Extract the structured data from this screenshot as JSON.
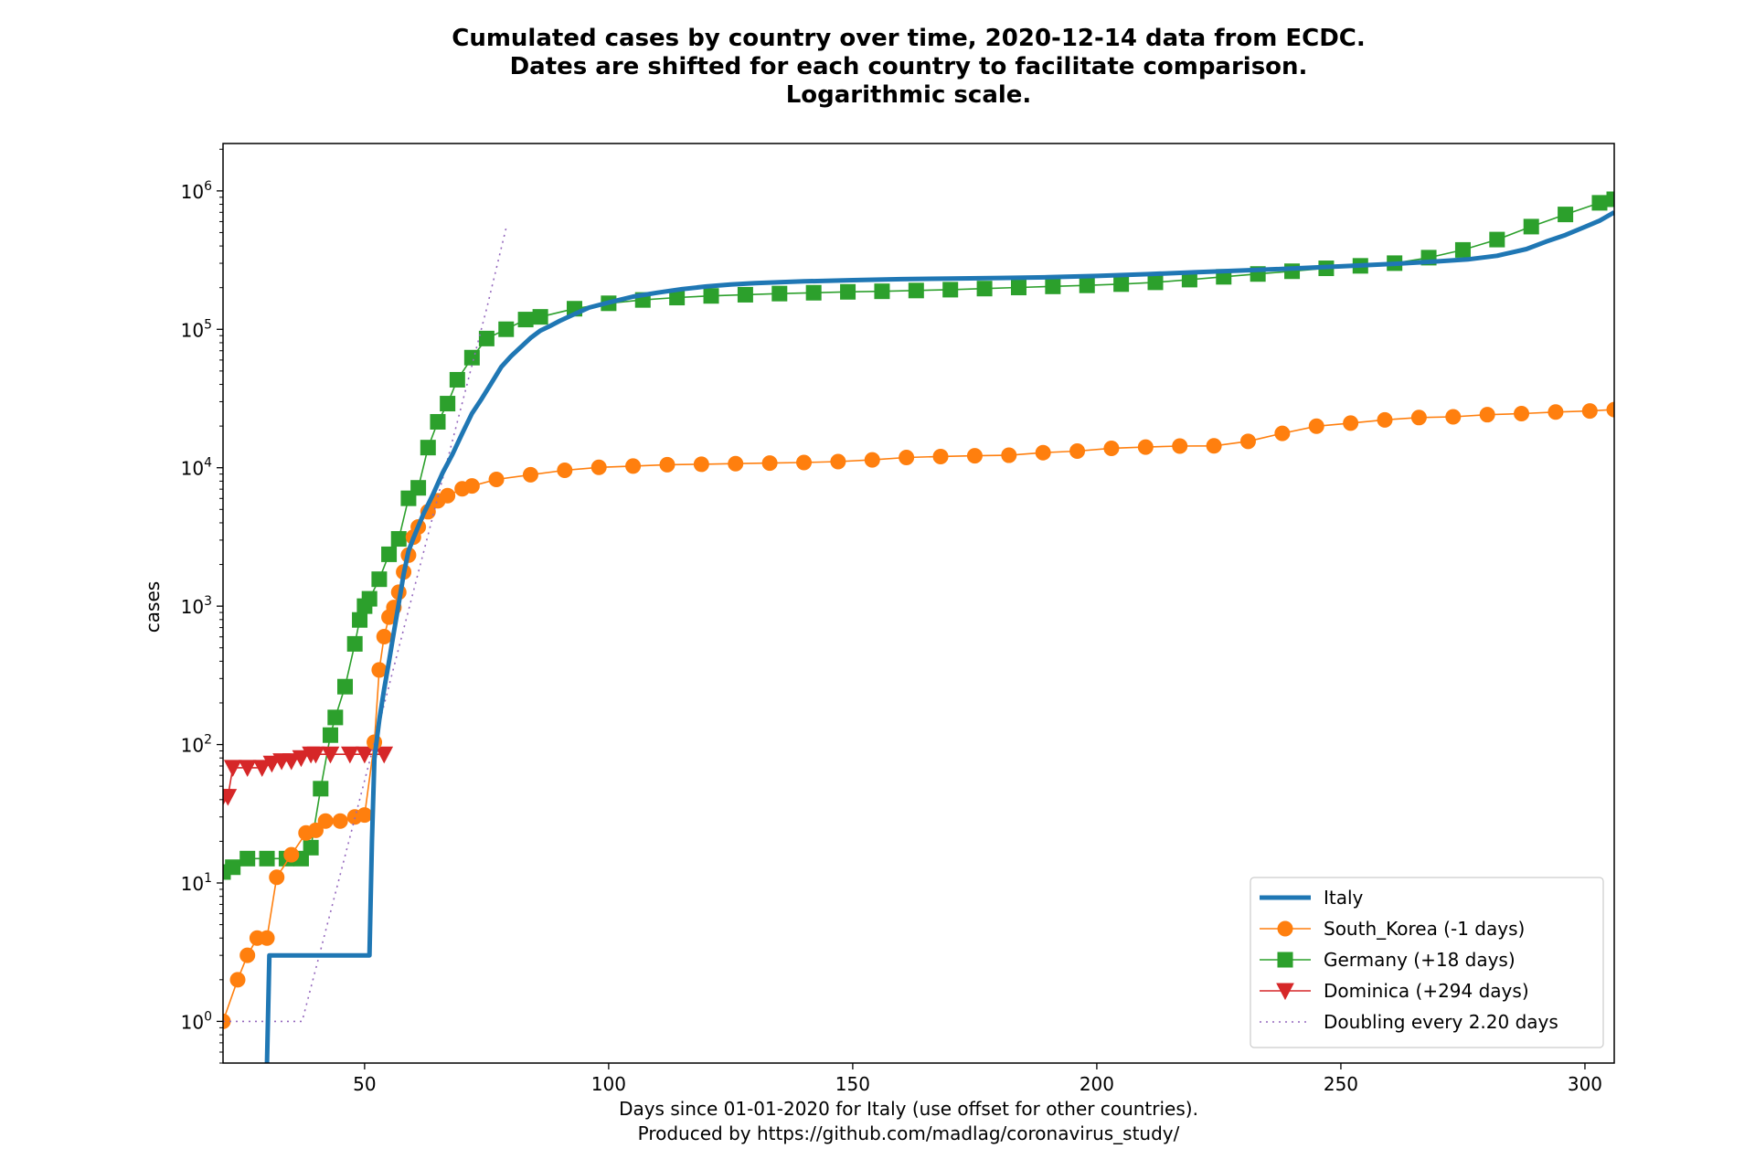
{
  "chart_data": {
    "type": "line",
    "title": [
      "Cumulated cases by country over time, 2020-12-14 data from ECDC.",
      "Dates are shifted for each country to facilitate comparison.",
      "Logarithmic scale."
    ],
    "xlabel": [
      "Days since 01-01-2020 for Italy (use offset for other countries).",
      "Produced by https://github.com/madlag/coronavirus_study/"
    ],
    "ylabel": "cases",
    "xlim": [
      21,
      306
    ],
    "ylim": [
      0.5,
      2200000
    ],
    "yscale": "log",
    "x_ticks": [
      50,
      100,
      150,
      200,
      250,
      300
    ],
    "x_tick_labels": [
      "50",
      "100",
      "150",
      "200",
      "250",
      "300"
    ],
    "y_ticks": [
      1,
      10,
      100,
      1000,
      10000,
      100000,
      1000000
    ],
    "y_tick_bases": [
      "10",
      "10",
      "10",
      "10",
      "10",
      "10",
      "10"
    ],
    "y_tick_exponents": [
      "0",
      "1",
      "2",
      "3",
      "4",
      "5",
      "6"
    ],
    "grid": false,
    "legend_position": "lower-right",
    "series": [
      {
        "name": "Italy",
        "color": "#1f77b4",
        "line_width": "thick",
        "marker": "none",
        "line_style": "solid",
        "x": [
          30,
          30,
          30.5,
          51,
          51.5,
          52,
          53,
          54,
          55,
          56,
          57,
          58,
          59,
          60,
          62,
          64,
          66,
          68,
          70,
          72,
          74,
          76,
          78,
          80,
          82,
          84,
          86,
          88,
          90,
          93,
          96,
          100,
          105,
          110,
          115,
          120,
          125,
          130,
          140,
          150,
          160,
          170,
          180,
          190,
          200,
          210,
          220,
          230,
          240,
          250,
          260,
          270,
          276,
          282,
          288,
          292,
          296,
          300,
          303,
          306
        ],
        "y": [
          0.5,
          0.5,
          3,
          3,
          20,
          79,
          150,
          250,
          400,
          650,
          1050,
          1700,
          2500,
          3100,
          4600,
          6400,
          9200,
          12500,
          17700,
          24700,
          31500,
          41000,
          53500,
          63900,
          74400,
          86500,
          97700,
          105800,
          115200,
          128900,
          143600,
          156400,
          172400,
          183900,
          195300,
          204000,
          210700,
          215900,
          222100,
          226700,
          230200,
          232700,
          235000,
          238000,
          243000,
          250000,
          258000,
          266000,
          275000,
          285000,
          296000,
          310000,
          320000,
          340000,
          380000,
          430000,
          480000,
          550000,
          610000,
          700000
        ]
      },
      {
        "name": "South_Korea (-1 days)",
        "color": "#ff7f0e",
        "line_width": "thin",
        "marker": "circle",
        "line_style": "solid",
        "x": [
          21,
          24,
          26,
          28,
          30,
          32,
          35,
          38,
          40,
          42,
          45,
          48,
          50,
          52,
          53,
          54,
          55,
          56,
          57,
          58,
          59,
          60,
          61,
          63,
          65,
          67,
          70,
          72,
          77,
          84,
          91,
          98,
          105,
          112,
          119,
          126,
          133,
          140,
          147,
          154,
          161,
          168,
          175,
          182,
          189,
          196,
          203,
          210,
          217,
          224,
          231,
          238,
          245,
          252,
          259,
          266,
          273,
          280,
          287,
          294,
          301,
          306
        ],
        "y": [
          1,
          2,
          3,
          4,
          4,
          11,
          16,
          23,
          24,
          28,
          28,
          30,
          31,
          104,
          346,
          602,
          833,
          977,
          1261,
          1766,
          2337,
          3150,
          3736,
          4812,
          5766,
          6284,
          7041,
          7382,
          8236,
          8897,
          9583,
          10062,
          10284,
          10512,
          10591,
          10702,
          10810,
          10909,
          11078,
          11402,
          11852,
          12051,
          12198,
          12306,
          12850,
          13181,
          13816,
          14092,
          14336,
          14389,
          15515,
          17711,
          19947,
          21010,
          22176,
          23045,
          23341,
          24164,
          24606,
          25255,
          25698,
          26300
        ]
      },
      {
        "name": "Germany (+18 days)",
        "color": "#2ca02c",
        "line_width": "thin",
        "marker": "square",
        "line_style": "solid",
        "x": [
          21,
          23,
          26,
          30,
          34,
          37,
          39,
          41,
          43,
          44,
          46,
          48,
          49,
          50,
          51,
          53,
          55,
          57,
          59,
          61,
          63,
          65,
          67,
          69,
          72,
          75,
          79,
          83,
          86,
          93,
          100,
          107,
          114,
          121,
          128,
          135,
          142,
          149,
          156,
          163,
          170,
          177,
          184,
          191,
          198,
          205,
          212,
          219,
          226,
          233,
          240,
          247,
          254,
          261,
          268,
          275,
          282,
          289,
          296,
          303,
          306
        ],
        "y": [
          12,
          13,
          15,
          15,
          15,
          15,
          18,
          48,
          117,
          157,
          262,
          534,
          795,
          1000,
          1130,
          1565,
          2369,
          3062,
          6012,
          7156,
          13979,
          21463,
          29056,
          43211,
          62435,
          85778,
          100123,
          117658,
          123016,
          140886,
          154175,
          163009,
          169575,
          174355,
          177778,
          181196,
          183765,
          186522,
          188252,
          190670,
          193371,
          196944,
          200456,
          204276,
          207707,
          212111,
          218519,
          228621,
          239507,
          251058,
          262772,
          275927,
          287421,
          300619,
          329453,
          374661,
          445000,
          552000,
          676000,
          820000,
          870000
        ]
      },
      {
        "name": "Dominica (+294 days)",
        "color": "#d62728",
        "line_width": "thin",
        "marker": "triangle-down",
        "line_style": "solid",
        "x": [
          21,
          22,
          23,
          26,
          29,
          31,
          33,
          35,
          37,
          39,
          40,
          43,
          47,
          50,
          54
        ],
        "y": [
          42,
          42,
          68,
          68,
          68,
          73,
          76,
          76,
          80,
          85,
          85,
          85,
          85,
          85,
          85
        ]
      },
      {
        "name": "Doubling every 2.20 days",
        "color": "#9467bd",
        "line_width": "thin",
        "marker": "none",
        "line_style": "dotted",
        "x": [
          21,
          37,
          37.2,
          40,
          45,
          50,
          55,
          60,
          65,
          70,
          75,
          79
        ],
        "y": [
          1,
          1,
          1,
          2.4,
          11.5,
          55,
          266,
          1280,
          6130,
          29400,
          141000,
          540000
        ]
      }
    ]
  }
}
